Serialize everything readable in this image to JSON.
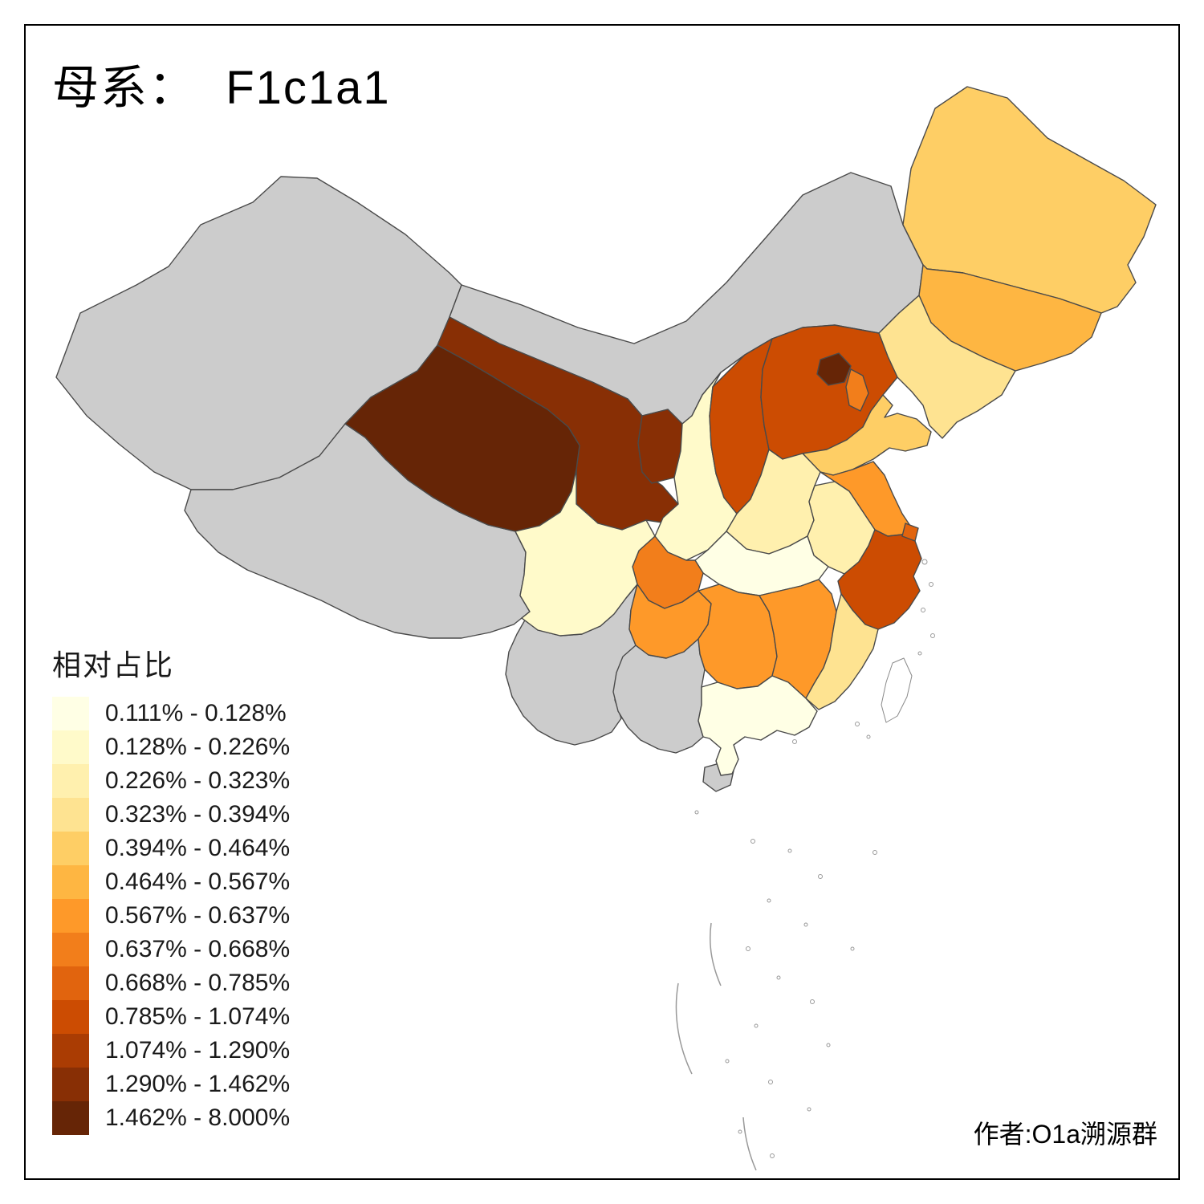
{
  "title": "母系：  F1c1a1",
  "legend": {
    "title": "相对占比",
    "items": [
      {
        "label": "0.111% - 0.128%",
        "color": "#FFFFE5"
      },
      {
        "label": "0.128% - 0.226%",
        "color": "#FFFACA"
      },
      {
        "label": "0.226% - 0.323%",
        "color": "#FFF0AE"
      },
      {
        "label": "0.323% - 0.394%",
        "color": "#FEE391"
      },
      {
        "label": "0.394% - 0.464%",
        "color": "#FECE65"
      },
      {
        "label": "0.464% - 0.567%",
        "color": "#FEB642"
      },
      {
        "label": "0.567% - 0.637%",
        "color": "#FE9929"
      },
      {
        "label": "0.637% - 0.668%",
        "color": "#F27E1B"
      },
      {
        "label": "0.668% - 0.785%",
        "color": "#E1640E"
      },
      {
        "label": "0.785% - 1.074%",
        "color": "#CC4C02"
      },
      {
        "label": "1.074% - 1.290%",
        "color": "#AA3C03"
      },
      {
        "label": "1.290% - 1.462%",
        "color": "#882F05"
      },
      {
        "label": "1.462% - 8.000%",
        "color": "#662506"
      }
    ]
  },
  "attribution": "作者:O1a溯源群",
  "map": {
    "no_data_color": "#CCCCCC",
    "border_color": "#4A4A4A",
    "provinces": [
      {
        "id": "xinjiang",
        "fill": "#CCCCCC"
      },
      {
        "id": "tibet",
        "fill": "#CCCCCC"
      },
      {
        "id": "inner-mongolia",
        "fill": "#CCCCCC"
      },
      {
        "id": "yunnan",
        "fill": "#CCCCCC"
      },
      {
        "id": "guangxi",
        "fill": "#CCCCCC"
      },
      {
        "id": "hainan",
        "fill": "#CCCCCC"
      },
      {
        "id": "qinghai",
        "fill": "#662506"
      },
      {
        "id": "beijing",
        "fill": "#662506"
      },
      {
        "id": "gansu",
        "fill": "#882F05"
      },
      {
        "id": "ningxia",
        "fill": "#882F05"
      },
      {
        "id": "hebei",
        "fill": "#CC4C02"
      },
      {
        "id": "shanxi",
        "fill": "#CC4C02"
      },
      {
        "id": "zhejiang",
        "fill": "#CC4C02"
      },
      {
        "id": "shanghai",
        "fill": "#E1640E"
      },
      {
        "id": "tianjin",
        "fill": "#F27E1B"
      },
      {
        "id": "chongqing",
        "fill": "#F27E1B"
      },
      {
        "id": "jiangsu",
        "fill": "#FE9929"
      },
      {
        "id": "hunan",
        "fill": "#FE9929"
      },
      {
        "id": "jiangxi",
        "fill": "#FE9929"
      },
      {
        "id": "guizhou",
        "fill": "#FE9929"
      },
      {
        "id": "jilin",
        "fill": "#FEB642"
      },
      {
        "id": "heilongjiang",
        "fill": "#FECE65"
      },
      {
        "id": "shandong",
        "fill": "#FECE65"
      },
      {
        "id": "liaoning",
        "fill": "#FEE391"
      },
      {
        "id": "fujian",
        "fill": "#FEE391"
      },
      {
        "id": "henan",
        "fill": "#FFF0AE"
      },
      {
        "id": "anhui",
        "fill": "#FFF0AE"
      },
      {
        "id": "shaanxi",
        "fill": "#FFFACA"
      },
      {
        "id": "sichuan",
        "fill": "#FFFACA"
      },
      {
        "id": "hubei",
        "fill": "#FFFFE5"
      },
      {
        "id": "guangdong",
        "fill": "#FFFFE5"
      },
      {
        "id": "taiwan",
        "fill": "#FFFFFF"
      }
    ]
  }
}
